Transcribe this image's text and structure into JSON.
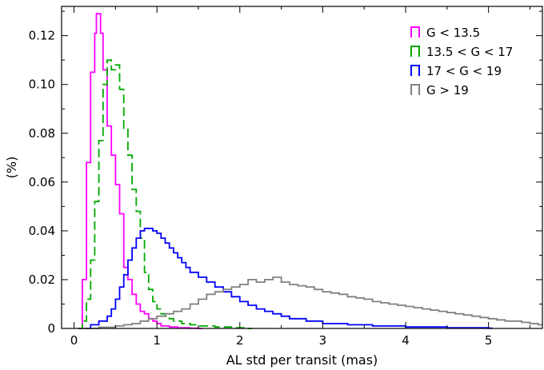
{
  "chart_data": {
    "type": "histogram",
    "xlabel": "AL std per transit (mas)",
    "ylabel": "(%)",
    "xlim": [
      -0.15,
      5.65
    ],
    "ylim": [
      0,
      0.132
    ],
    "xticks": [
      0,
      1,
      2,
      3,
      4,
      5
    ],
    "yticks": [
      0,
      0.02,
      0.04,
      0.06,
      0.08,
      0.1,
      0.12
    ],
    "ytick_labels": [
      "0",
      "0.02",
      "0.04",
      "0.06",
      "0.08",
      "0.10",
      "0.12"
    ],
    "legend_position": "top-right",
    "series": [
      {
        "name": "G < 13.5",
        "color": "#ff00ff",
        "dash": "solid",
        "points": [
          [
            0.05,
            0
          ],
          [
            0.1,
            0.02
          ],
          [
            0.15,
            0.068
          ],
          [
            0.2,
            0.105
          ],
          [
            0.25,
            0.121
          ],
          [
            0.27,
            0.129
          ],
          [
            0.32,
            0.121
          ],
          [
            0.35,
            0.106
          ],
          [
            0.4,
            0.083
          ],
          [
            0.45,
            0.071
          ],
          [
            0.5,
            0.059
          ],
          [
            0.55,
            0.047
          ],
          [
            0.6,
            0.025
          ],
          [
            0.65,
            0.02
          ],
          [
            0.7,
            0.014
          ],
          [
            0.75,
            0.01
          ],
          [
            0.8,
            0.007
          ],
          [
            0.85,
            0.006
          ],
          [
            0.9,
            0.004
          ],
          [
            0.95,
            0.003
          ],
          [
            1.0,
            0.002
          ],
          [
            1.05,
            0.001
          ],
          [
            1.15,
            0.0006
          ],
          [
            1.25,
            0.0003
          ],
          [
            1.4,
            0.0001
          ],
          [
            1.5,
            0
          ]
        ]
      },
      {
        "name": "13.5 < G < 17",
        "color": "#00aa00",
        "dash": "dashed",
        "points": [
          [
            0.05,
            0
          ],
          [
            0.1,
            0.003
          ],
          [
            0.15,
            0.012
          ],
          [
            0.2,
            0.028
          ],
          [
            0.25,
            0.052
          ],
          [
            0.3,
            0.077
          ],
          [
            0.35,
            0.1
          ],
          [
            0.4,
            0.11
          ],
          [
            0.45,
            0.106
          ],
          [
            0.5,
            0.108
          ],
          [
            0.55,
            0.098
          ],
          [
            0.6,
            0.082
          ],
          [
            0.65,
            0.071
          ],
          [
            0.7,
            0.057
          ],
          [
            0.75,
            0.048
          ],
          [
            0.8,
            0.037
          ],
          [
            0.85,
            0.023
          ],
          [
            0.9,
            0.016
          ],
          [
            0.95,
            0.011
          ],
          [
            1.0,
            0.008
          ],
          [
            1.05,
            0.006
          ],
          [
            1.1,
            0.005
          ],
          [
            1.15,
            0.004
          ],
          [
            1.2,
            0.003
          ],
          [
            1.3,
            0.002
          ],
          [
            1.4,
            0.0015
          ],
          [
            1.5,
            0.001
          ],
          [
            1.7,
            0.0006
          ],
          [
            1.9,
            0.0003
          ],
          [
            2.1,
            0
          ]
        ]
      },
      {
        "name": "17 < G < 19",
        "color": "#0000ff",
        "dash": "solid",
        "points": [
          [
            0.15,
            0
          ],
          [
            0.2,
            0.0015
          ],
          [
            0.3,
            0.003
          ],
          [
            0.4,
            0.005
          ],
          [
            0.45,
            0.008
          ],
          [
            0.5,
            0.012
          ],
          [
            0.55,
            0.017
          ],
          [
            0.6,
            0.022
          ],
          [
            0.65,
            0.028
          ],
          [
            0.7,
            0.033
          ],
          [
            0.75,
            0.037
          ],
          [
            0.8,
            0.04
          ],
          [
            0.85,
            0.041
          ],
          [
            0.9,
            0.041
          ],
          [
            0.95,
            0.04
          ],
          [
            1.0,
            0.039
          ],
          [
            1.05,
            0.037
          ],
          [
            1.1,
            0.035
          ],
          [
            1.15,
            0.033
          ],
          [
            1.2,
            0.031
          ],
          [
            1.25,
            0.029
          ],
          [
            1.3,
            0.027
          ],
          [
            1.35,
            0.025
          ],
          [
            1.4,
            0.023
          ],
          [
            1.5,
            0.021
          ],
          [
            1.6,
            0.019
          ],
          [
            1.7,
            0.017
          ],
          [
            1.8,
            0.015
          ],
          [
            1.9,
            0.013
          ],
          [
            2.0,
            0.011
          ],
          [
            2.1,
            0.0095
          ],
          [
            2.2,
            0.008
          ],
          [
            2.3,
            0.007
          ],
          [
            2.4,
            0.006
          ],
          [
            2.5,
            0.005
          ],
          [
            2.6,
            0.004
          ],
          [
            2.8,
            0.003
          ],
          [
            3.0,
            0.002
          ],
          [
            3.3,
            0.0015
          ],
          [
            3.6,
            0.001
          ],
          [
            4.0,
            0.0006
          ],
          [
            4.5,
            0.0003
          ],
          [
            5.0,
            0.0001
          ]
        ]
      },
      {
        "name": "G > 19",
        "color": "#808080",
        "dash": "solid",
        "points": [
          [
            0.1,
            0
          ],
          [
            0.3,
            0.0005
          ],
          [
            0.5,
            0.001
          ],
          [
            0.6,
            0.0015
          ],
          [
            0.7,
            0.002
          ],
          [
            0.8,
            0.003
          ],
          [
            0.9,
            0.004
          ],
          [
            1.0,
            0.005
          ],
          [
            1.1,
            0.006
          ],
          [
            1.2,
            0.007
          ],
          [
            1.3,
            0.008
          ],
          [
            1.4,
            0.01
          ],
          [
            1.5,
            0.012
          ],
          [
            1.6,
            0.014
          ],
          [
            1.7,
            0.015
          ],
          [
            1.8,
            0.016
          ],
          [
            1.9,
            0.017
          ],
          [
            2.0,
            0.018
          ],
          [
            2.1,
            0.02
          ],
          [
            2.2,
            0.019
          ],
          [
            2.3,
            0.02
          ],
          [
            2.4,
            0.021
          ],
          [
            2.5,
            0.019
          ],
          [
            2.6,
            0.018
          ],
          [
            2.7,
            0.0175
          ],
          [
            2.8,
            0.017
          ],
          [
            2.9,
            0.016
          ],
          [
            3.0,
            0.015
          ],
          [
            3.1,
            0.0145
          ],
          [
            3.2,
            0.014
          ],
          [
            3.3,
            0.013
          ],
          [
            3.4,
            0.0125
          ],
          [
            3.5,
            0.012
          ],
          [
            3.6,
            0.011
          ],
          [
            3.7,
            0.0105
          ],
          [
            3.8,
            0.01
          ],
          [
            3.9,
            0.0095
          ],
          [
            4.0,
            0.009
          ],
          [
            4.1,
            0.0085
          ],
          [
            4.2,
            0.008
          ],
          [
            4.3,
            0.0075
          ],
          [
            4.4,
            0.007
          ],
          [
            4.5,
            0.0065
          ],
          [
            4.6,
            0.006
          ],
          [
            4.7,
            0.0055
          ],
          [
            4.8,
            0.005
          ],
          [
            4.9,
            0.0045
          ],
          [
            5.0,
            0.004
          ],
          [
            5.1,
            0.0035
          ],
          [
            5.2,
            0.003
          ],
          [
            5.3,
            0.003
          ],
          [
            5.4,
            0.0025
          ],
          [
            5.5,
            0.002
          ],
          [
            5.6,
            0.0015
          ]
        ]
      }
    ]
  }
}
